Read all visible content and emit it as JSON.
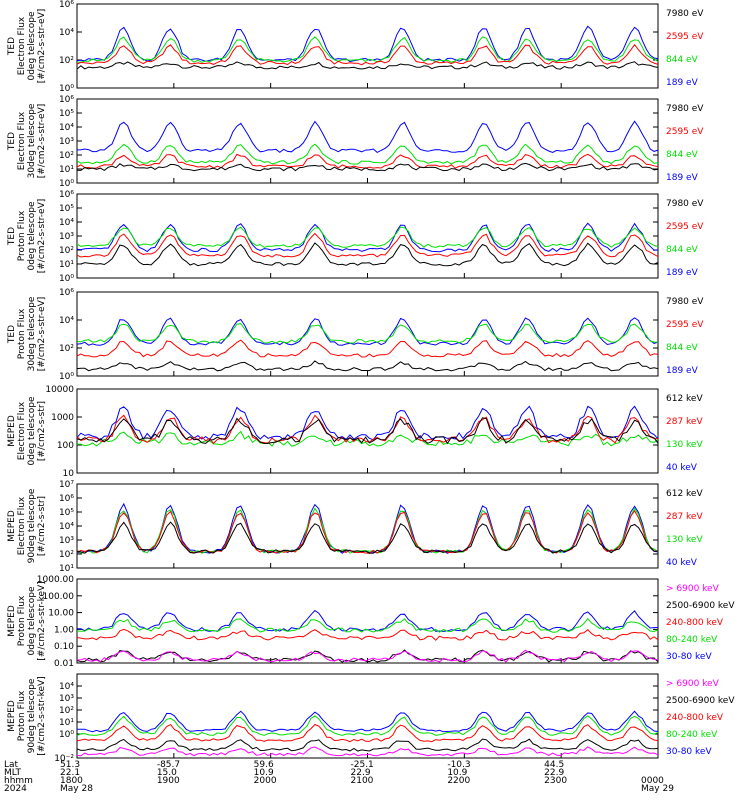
{
  "colors": {
    "black": "#000000",
    "red": "#ff0000",
    "green": "#00e000",
    "blue": "#0000ff",
    "magenta": "#ff00ff",
    "frame": "#000000"
  },
  "chart_data": [
    {
      "type": "line",
      "ylabel": [
        "TED",
        "Electron Flux",
        "0deg telescope",
        "[#/cm2-s-str-eV]"
      ],
      "y_scale": "log",
      "ylim": [
        1,
        1000000
      ],
      "yticks": [
        {
          "v": 1,
          "label": "10⁰"
        },
        {
          "v": 100,
          "label": "10²"
        },
        {
          "v": 10000,
          "label": "10⁴"
        },
        {
          "v": 1000000,
          "label": "10⁶"
        }
      ],
      "series": [
        {
          "name": "7980 eV",
          "color": "#000000",
          "base": 30,
          "amp": 0.3
        },
        {
          "name": "2595 eV",
          "color": "#ff0000",
          "base": 60,
          "amp": 1.2
        },
        {
          "name": "844 eV",
          "color": "#00e000",
          "base": 90,
          "amp": 1.6
        },
        {
          "name": "189 eV",
          "color": "#0000ff",
          "base": 100,
          "amp": 2.3
        }
      ]
    },
    {
      "type": "line",
      "ylabel": [
        "TED",
        "Electron Flux",
        "30deg telescope",
        "[#/cm2-s-str-eV]"
      ],
      "y_scale": "log",
      "ylim": [
        1,
        1000000
      ],
      "yticks": [
        {
          "v": 1,
          "label": "10⁰"
        },
        {
          "v": 10,
          "label": "10¹"
        },
        {
          "v": 100,
          "label": "10²"
        },
        {
          "v": 1000,
          "label": "10³"
        },
        {
          "v": 10000,
          "label": "10⁴"
        },
        {
          "v": 100000,
          "label": "10⁵"
        },
        {
          "v": 1000000,
          "label": "10⁶"
        }
      ],
      "series": [
        {
          "name": "7980 eV",
          "color": "#000000",
          "base": 10,
          "amp": 0.3
        },
        {
          "name": "2595 eV",
          "color": "#ff0000",
          "base": 15,
          "amp": 0.8
        },
        {
          "name": "844 eV",
          "color": "#00e000",
          "base": 30,
          "amp": 1.2
        },
        {
          "name": "189 eV",
          "color": "#0000ff",
          "base": 200,
          "amp": 2.0
        }
      ]
    },
    {
      "type": "line",
      "ylabel": [
        "TED",
        "Proton Flux",
        "0deg telescope",
        "[#/cm2-s-str-eV]"
      ],
      "y_scale": "log",
      "ylim": [
        1,
        1000000
      ],
      "yticks": [
        {
          "v": 1,
          "label": "10⁰"
        },
        {
          "v": 10,
          "label": "10¹"
        },
        {
          "v": 100,
          "label": "10²"
        },
        {
          "v": 1000,
          "label": "10³"
        },
        {
          "v": 10000,
          "label": "10⁴"
        },
        {
          "v": 100000,
          "label": "10⁵"
        },
        {
          "v": 1000000,
          "label": "10⁶"
        }
      ],
      "series": [
        {
          "name": "7980 eV",
          "color": "#000000",
          "base": 10,
          "amp": 1.4
        },
        {
          "name": "2595 eV",
          "color": "#ff0000",
          "base": 40,
          "amp": 1.5
        },
        {
          "name": "844 eV",
          "color": "#00e000",
          "base": 200,
          "amp": 1.3
        },
        {
          "name": "189 eV",
          "color": "#0000ff",
          "base": 100,
          "amp": 1.8
        }
      ]
    },
    {
      "type": "line",
      "ylabel": [
        "TED",
        "Proton Flux",
        "30deg telescope",
        "[#/cm2-s-str-eV]"
      ],
      "y_scale": "log",
      "ylim": [
        1,
        1000000
      ],
      "yticks": [
        {
          "v": 1,
          "label": "10⁰"
        },
        {
          "v": 100,
          "label": "10²"
        },
        {
          "v": 10000,
          "label": "10⁴"
        },
        {
          "v": 1000000,
          "label": "10⁶"
        }
      ],
      "series": [
        {
          "name": "7980 eV",
          "color": "#000000",
          "base": 3,
          "amp": 0.5
        },
        {
          "name": "2595 eV",
          "color": "#ff0000",
          "base": 30,
          "amp": 1.0
        },
        {
          "name": "844 eV",
          "color": "#00e000",
          "base": 300,
          "amp": 1.2
        },
        {
          "name": "189 eV",
          "color": "#0000ff",
          "base": 200,
          "amp": 1.8
        }
      ]
    },
    {
      "type": "line",
      "ylabel": [
        "MEPED",
        "Electron Flux",
        "0deg telescope",
        "[#/cm2-s-str]"
      ],
      "y_scale": "log",
      "ylim": [
        10,
        10000
      ],
      "yticks": [
        {
          "v": 10,
          "label": "10"
        },
        {
          "v": 100,
          "label": "100"
        },
        {
          "v": 1000,
          "label": "1000"
        },
        {
          "v": 10000,
          "label": "10000"
        }
      ],
      "series": [
        {
          "name": "612 keV",
          "color": "#000000",
          "base": 150,
          "amp": 0.7
        },
        {
          "name": "287 keV",
          "color": "#ff0000",
          "base": 150,
          "amp": 0.8
        },
        {
          "name": "130 keV",
          "color": "#00e000",
          "base": 120,
          "amp": 0.3
        },
        {
          "name": "40 keV",
          "color": "#0000ff",
          "base": 200,
          "amp": 1.0
        }
      ]
    },
    {
      "type": "line",
      "ylabel": [
        "MEPED",
        "Electron Flux",
        "90deg telescope",
        "[#/cm2-s-str]"
      ],
      "y_scale": "log",
      "ylim": [
        10,
        10000000
      ],
      "yticks": [
        {
          "v": 10,
          "label": "10¹"
        },
        {
          "v": 100,
          "label": "10²"
        },
        {
          "v": 1000,
          "label": "10³"
        },
        {
          "v": 10000,
          "label": "10⁴"
        },
        {
          "v": 100000,
          "label": "10⁵"
        },
        {
          "v": 1000000,
          "label": "10⁶"
        },
        {
          "v": 10000000,
          "label": "10⁷"
        }
      ],
      "series": [
        {
          "name": "612 keV",
          "color": "#000000",
          "base": 150,
          "amp": 2.0
        },
        {
          "name": "287 keV",
          "color": "#ff0000",
          "base": 150,
          "amp": 2.8
        },
        {
          "name": "130 keV",
          "color": "#00e000",
          "base": 150,
          "amp": 3.0
        },
        {
          "name": "40 keV",
          "color": "#0000ff",
          "base": 150,
          "amp": 3.3
        }
      ]
    },
    {
      "type": "line",
      "ylabel": [
        "MEPED",
        "Proton Flux",
        "0deg telescope",
        "[#/cm2-s-str-keV]"
      ],
      "y_scale": "log",
      "ylim": [
        0.01,
        1000
      ],
      "yticks": [
        {
          "v": 0.01,
          "label": "0.01"
        },
        {
          "v": 0.1,
          "label": "0.10"
        },
        {
          "v": 1,
          "label": "1.00"
        },
        {
          "v": 10,
          "label": "10.00"
        },
        {
          "v": 100,
          "label": "100.00"
        },
        {
          "v": 1000,
          "label": "1000.00"
        }
      ],
      "series": [
        {
          "name": "> 6900 keV",
          "color": "#ff00ff",
          "base": 0.015,
          "amp": 0.5
        },
        {
          "name": "2500-6900 keV",
          "color": "#000000",
          "base": 0.015,
          "amp": 0.5
        },
        {
          "name": "240-800 keV",
          "color": "#ff0000",
          "base": 0.3,
          "amp": 0.4
        },
        {
          "name": "80-240 keV",
          "color": "#00e000",
          "base": 0.9,
          "amp": 0.6
        },
        {
          "name": "30-80 keV",
          "color": "#0000ff",
          "base": 1.0,
          "amp": 1.0
        }
      ]
    },
    {
      "type": "line",
      "ylabel": [
        "MEPED",
        "Proton Flux",
        "90deg telescope",
        "[#/cm2-s-str-keV]"
      ],
      "y_scale": "log",
      "ylim": [
        0.01,
        100000
      ],
      "yticks": [
        {
          "v": 0.01,
          "label": "10⁻²"
        },
        {
          "v": 1,
          "label": "10⁰"
        },
        {
          "v": 10,
          "label": "10¹"
        },
        {
          "v": 100,
          "label": "10²"
        },
        {
          "v": 1000,
          "label": "10³"
        },
        {
          "v": 10000,
          "label": "10⁴"
        }
      ],
      "series": [
        {
          "name": "> 6900 keV",
          "color": "#ff00ff",
          "base": 0.02,
          "amp": 0.5
        },
        {
          "name": "2500-6900 keV",
          "color": "#000000",
          "base": 0.05,
          "amp": 0.8
        },
        {
          "name": "240-800 keV",
          "color": "#ff0000",
          "base": 0.3,
          "amp": 1.2
        },
        {
          "name": "80-240 keV",
          "color": "#00e000",
          "base": 1.0,
          "amp": 1.4
        },
        {
          "name": "30-80 keV",
          "color": "#0000ff",
          "base": 2.0,
          "amp": 1.5
        }
      ]
    }
  ],
  "time_axis": {
    "row_labels": [
      "Lat",
      "MLT",
      "hhmm",
      "2024"
    ],
    "ticks": [
      {
        "lat": "51.3",
        "mlt": "22.1",
        "hhmm": "1800",
        "date": "May 28"
      },
      {
        "lat": "-85.7",
        "mlt": "15.0",
        "hhmm": "1900",
        "date": ""
      },
      {
        "lat": "59.6",
        "mlt": "10.9",
        "hhmm": "2000",
        "date": ""
      },
      {
        "lat": "-25.1",
        "mlt": "22.9",
        "hhmm": "2100",
        "date": ""
      },
      {
        "lat": "-10.3",
        "mlt": "10.9",
        "hhmm": "2200",
        "date": ""
      },
      {
        "lat": "44.5",
        "mlt": "22.9",
        "hhmm": "2300",
        "date": ""
      },
      {
        "lat": "",
        "mlt": "",
        "hhmm": "0000",
        "date": "May 29"
      }
    ]
  }
}
